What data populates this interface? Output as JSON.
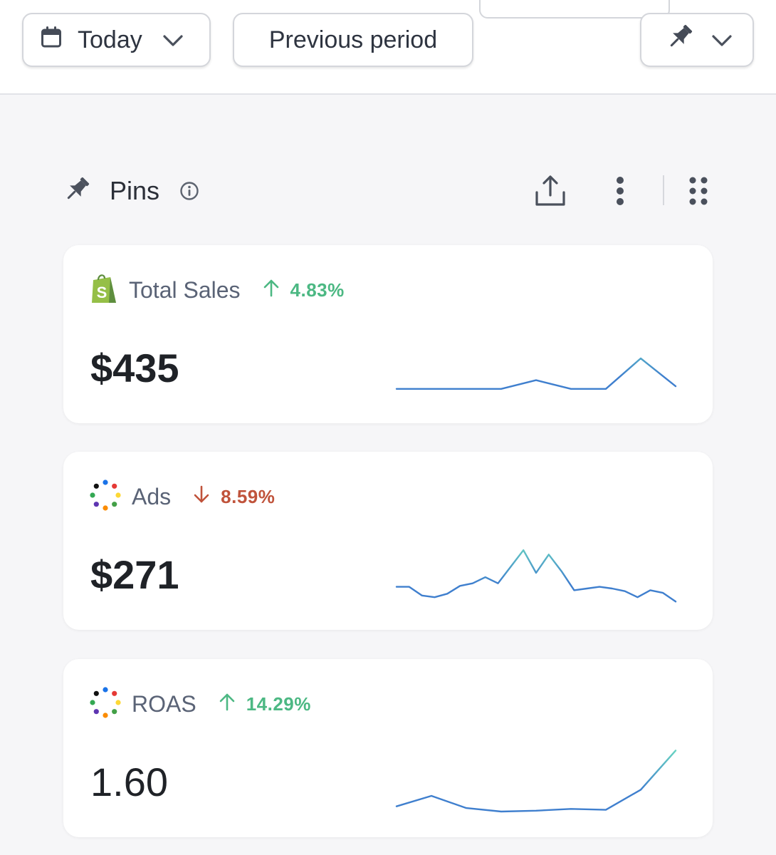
{
  "toolbar": {
    "date_range_label": "Today",
    "compare_label": "Previous period"
  },
  "pins": {
    "title": "Pins"
  },
  "colors": {
    "positive": "#4cb883",
    "negative": "#c0533b",
    "line_start": "#3f7fce",
    "line_end": "#6fe0c0"
  },
  "cards": [
    {
      "name": "Total Sales",
      "source_icon": "shopify-icon",
      "trend_direction": "up",
      "trend_pct": "4.83%",
      "value": "$435",
      "sparkline": [
        10,
        10,
        10,
        10,
        20,
        10,
        10,
        45,
        13
      ]
    },
    {
      "name": "Ads",
      "source_icon": "multi-channel-dots-icon",
      "trend_direction": "down",
      "trend_pct": "8.59%",
      "value": "$271",
      "sparkline": [
        20,
        20,
        10,
        8,
        12,
        21,
        24,
        31,
        24,
        43,
        62,
        36,
        57,
        38,
        16,
        18,
        20,
        18,
        15,
        8,
        16,
        13,
        3
      ]
    },
    {
      "name": "ROAS",
      "source_icon": "multi-channel-dots-icon",
      "trend_direction": "up",
      "trend_pct": "14.29%",
      "value": "1.60",
      "sparkline": [
        6,
        18,
        4,
        0,
        1,
        3,
        2,
        25,
        70
      ]
    }
  ]
}
